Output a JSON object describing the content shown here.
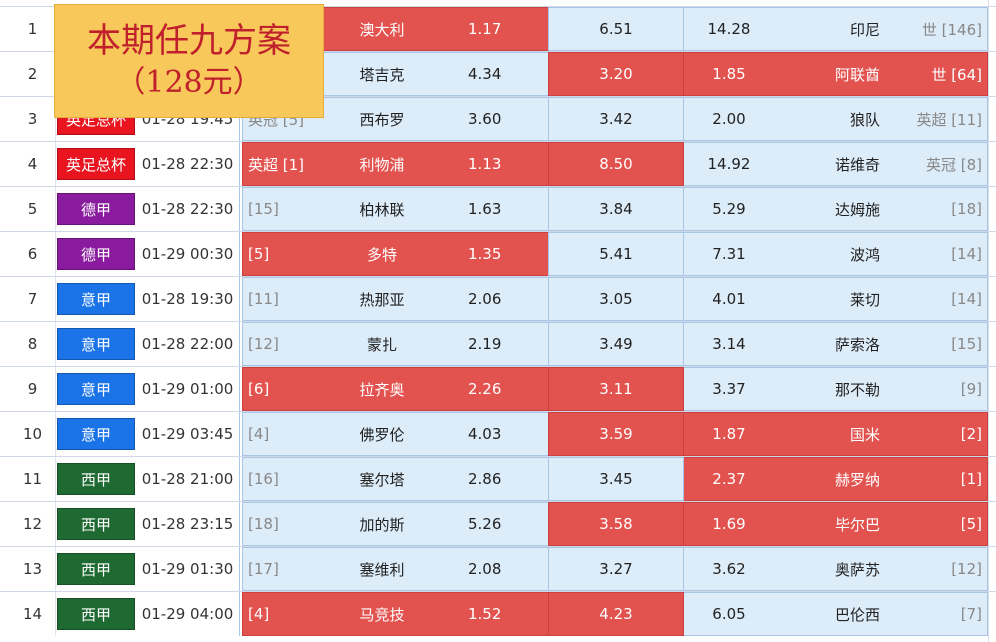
{
  "colors": {
    "accent_red": "#e2524f",
    "cell_blue": "#dcecf9",
    "league_英足总杯": "#e8141f",
    "league_德甲": "#8a1a9e",
    "league_意甲": "#1a74e8",
    "league_西甲": "#1e6a32",
    "banner_bg": "#f8c85a",
    "banner_text": "#c0202c"
  },
  "banner": {
    "line1": "本期任九方案",
    "line2": "（128元）"
  },
  "rows": [
    {
      "num": "1",
      "league": "",
      "time": "",
      "home_rank": "",
      "home": "澳大利",
      "home_odds": "1.17",
      "draw_odds": "6.51",
      "away_odds": "14.28",
      "away": "印尼",
      "away_rank": "世 [146]",
      "hl": "home"
    },
    {
      "num": "2",
      "league": "",
      "time": "",
      "home_rank": "",
      "home": "塔吉克",
      "home_odds": "4.34",
      "draw_odds": "3.20",
      "away_odds": "1.85",
      "away": "阿联酋",
      "away_rank": "世 [64]",
      "hl": "draw-away"
    },
    {
      "num": "3",
      "league": "英足总杯",
      "time": "01-28 19:45",
      "home_rank": "英冠 [5]",
      "home": "西布罗",
      "home_odds": "3.60",
      "draw_odds": "3.42",
      "away_odds": "2.00",
      "away": "狼队",
      "away_rank": "英超 [11]",
      "hl": "none"
    },
    {
      "num": "4",
      "league": "英足总杯",
      "time": "01-28 22:30",
      "home_rank": "英超 [1]",
      "home": "利物浦",
      "home_odds": "1.13",
      "draw_odds": "8.50",
      "away_odds": "14.92",
      "away": "诺维奇",
      "away_rank": "英冠 [8]",
      "hl": "home-draw"
    },
    {
      "num": "5",
      "league": "德甲",
      "time": "01-28 22:30",
      "home_rank": "[15]",
      "home": "柏林联",
      "home_odds": "1.63",
      "draw_odds": "3.84",
      "away_odds": "5.29",
      "away": "达姆施",
      "away_rank": "[18]",
      "hl": "none"
    },
    {
      "num": "6",
      "league": "德甲",
      "time": "01-29 00:30",
      "home_rank": "[5]",
      "home": "多特",
      "home_odds": "1.35",
      "draw_odds": "5.41",
      "away_odds": "7.31",
      "away": "波鸿",
      "away_rank": "[14]",
      "hl": "home"
    },
    {
      "num": "7",
      "league": "意甲",
      "time": "01-28 19:30",
      "home_rank": "[11]",
      "home": "热那亚",
      "home_odds": "2.06",
      "draw_odds": "3.05",
      "away_odds": "4.01",
      "away": "莱切",
      "away_rank": "[14]",
      "hl": "none"
    },
    {
      "num": "8",
      "league": "意甲",
      "time": "01-28 22:00",
      "home_rank": "[12]",
      "home": "蒙扎",
      "home_odds": "2.19",
      "draw_odds": "3.49",
      "away_odds": "3.14",
      "away": "萨索洛",
      "away_rank": "[15]",
      "hl": "none"
    },
    {
      "num": "9",
      "league": "意甲",
      "time": "01-29 01:00",
      "home_rank": "[6]",
      "home": "拉齐奥",
      "home_odds": "2.26",
      "draw_odds": "3.11",
      "away_odds": "3.37",
      "away": "那不勒",
      "away_rank": "[9]",
      "hl": "home-draw"
    },
    {
      "num": "10",
      "league": "意甲",
      "time": "01-29 03:45",
      "home_rank": "[4]",
      "home": "佛罗伦",
      "home_odds": "4.03",
      "draw_odds": "3.59",
      "away_odds": "1.87",
      "away": "国米",
      "away_rank": "[2]",
      "hl": "draw-away"
    },
    {
      "num": "11",
      "league": "西甲",
      "time": "01-28 21:00",
      "home_rank": "[16]",
      "home": "塞尔塔",
      "home_odds": "2.86",
      "draw_odds": "3.45",
      "away_odds": "2.37",
      "away": "赫罗纳",
      "away_rank": "[1]",
      "hl": "away"
    },
    {
      "num": "12",
      "league": "西甲",
      "time": "01-28 23:15",
      "home_rank": "[18]",
      "home": "加的斯",
      "home_odds": "5.26",
      "draw_odds": "3.58",
      "away_odds": "1.69",
      "away": "毕尔巴",
      "away_rank": "[5]",
      "hl": "draw-away"
    },
    {
      "num": "13",
      "league": "西甲",
      "time": "01-29 01:30",
      "home_rank": "[17]",
      "home": "塞维利",
      "home_odds": "2.08",
      "draw_odds": "3.27",
      "away_odds": "3.62",
      "away": "奥萨苏",
      "away_rank": "[12]",
      "hl": "none"
    },
    {
      "num": "14",
      "league": "西甲",
      "time": "01-29 04:00",
      "home_rank": "[4]",
      "home": "马竞技",
      "home_odds": "1.52",
      "draw_odds": "4.23",
      "away_odds": "6.05",
      "away": "巴伦西",
      "away_rank": "[7]",
      "hl": "home-draw"
    }
  ]
}
